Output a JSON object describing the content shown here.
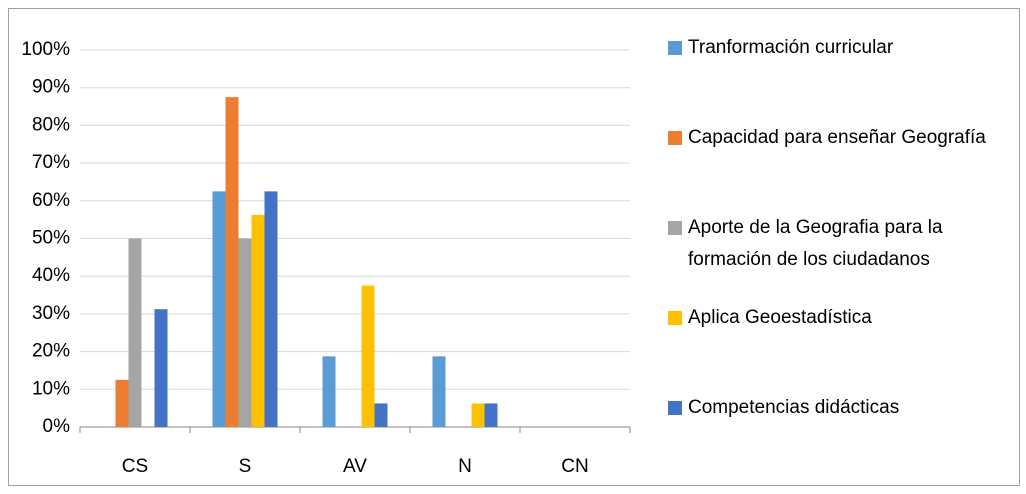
{
  "chart_data": {
    "type": "bar",
    "categories": [
      "CS",
      "S",
      "AV",
      "N",
      "CN"
    ],
    "series": [
      {
        "name": "Tranformación curricular",
        "color": "#5b9bd5",
        "values": [
          0,
          62.5,
          18.75,
          18.75,
          0
        ]
      },
      {
        "name": "Capacidad para enseñar Geografía",
        "color": "#ed7d31",
        "values": [
          12.5,
          87.5,
          0,
          0,
          0
        ]
      },
      {
        "name": "Aporte de la Geografia para la formación de los ciudadanos",
        "color": "#a5a5a5",
        "values": [
          50,
          50,
          0,
          0,
          0
        ]
      },
      {
        "name": "Aplica Geoestadística",
        "color": "#ffc000",
        "values": [
          0,
          56.25,
          37.5,
          6.25,
          0
        ]
      },
      {
        "name": "Competencias didácticas",
        "color": "#4472c4",
        "values": [
          31.25,
          62.5,
          6.25,
          6.25,
          0
        ]
      }
    ],
    "ylim": [
      0,
      100
    ],
    "yticks": [
      {
        "value": 0,
        "label": "0%"
      },
      {
        "value": 10,
        "label": "10%"
      },
      {
        "value": 20,
        "label": "20%"
      },
      {
        "value": 30,
        "label": "30%"
      },
      {
        "value": 40,
        "label": "40%"
      },
      {
        "value": 50,
        "label": "50%"
      },
      {
        "value": 60,
        "label": "60%"
      },
      {
        "value": 70,
        "label": "70%"
      },
      {
        "value": 80,
        "label": "80%"
      },
      {
        "value": 90,
        "label": "90%"
      },
      {
        "value": 100,
        "label": "100%"
      }
    ],
    "grid": true,
    "legend": "right"
  }
}
